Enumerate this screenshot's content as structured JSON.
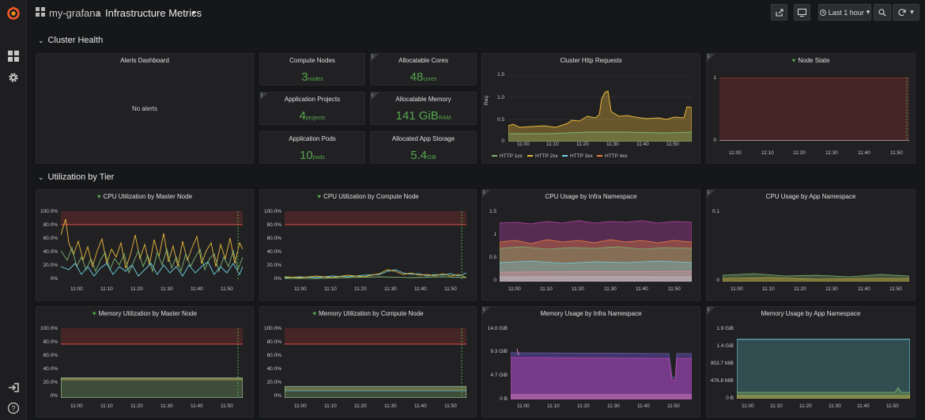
{
  "topbar": {
    "org": "my-grafana",
    "sep": "›",
    "dash": "Infrastructure Metrics",
    "caret": "▾",
    "time": "Last 1 hour",
    "time_caret": "▾",
    "refresh_caret": "▾"
  },
  "icons": {
    "logo": "grafana-logo-icon",
    "dashboards": "dashboards-grid-icon",
    "settings": "gear-icon",
    "signin": "sign-in-icon",
    "help": "help-icon"
  },
  "colors": {
    "accent": "#56a64b",
    "threshold": "#e24d42",
    "grid": "#2f3033"
  },
  "rows": [
    {
      "title": "Cluster Health",
      "chev": "⌄"
    },
    {
      "title": "Utilization by Tier",
      "chev": "⌄"
    }
  ],
  "alerts": {
    "title": "Alerts Dashboard",
    "empty": "No alerts"
  },
  "stats": [
    {
      "title": "Compute Nodes",
      "value": "3",
      "unit": "nodes"
    },
    {
      "title": "Allocatable Cores",
      "value": "48",
      "unit": "cores"
    },
    {
      "title": "Application Projects",
      "value": "4",
      "unit": "projects"
    },
    {
      "title": "Allocatable Memory",
      "value": "141 GiB",
      "unit": "RAM"
    },
    {
      "title": "Application Pods",
      "value": "10",
      "unit": "pods"
    },
    {
      "title": "Allocated App Storage",
      "value": "5.4",
      "unit": "GiB"
    }
  ],
  "info_mark": "i",
  "heart": "♥",
  "http": {
    "title": "Cluster Http Requests",
    "ylabel": "Req",
    "legend": [
      "HTTP 1xx",
      "HTTP 2xx",
      "HTTP 3xx",
      "HTTP 4xx"
    ]
  },
  "node_state": {
    "title": "Node State"
  },
  "xticks": [
    "11:00",
    "11:10",
    "11:20",
    "11:30",
    "11:40",
    "11:50"
  ],
  "pct_ticks": [
    "100.0%",
    "80.0%",
    "60.0%",
    "40.0%",
    "20.0%",
    "0%"
  ],
  "charts": [
    {
      "key": "http",
      "yticks": [
        "1.5",
        "1.0",
        "0.5",
        "0"
      ]
    },
    {
      "key": "node",
      "yticks": [
        "1",
        "0"
      ]
    },
    {
      "key": "cpum",
      "title": "CPU Utilization by Master Node"
    },
    {
      "key": "cpuc",
      "title": "CPU Utilization by Compute Node"
    },
    {
      "key": "cpuinfra",
      "title": "CPU Usage by Infra Namespace",
      "yticks": [
        "1.5",
        "1",
        "0.5",
        "0"
      ]
    },
    {
      "key": "cpuapp",
      "title": "CPU Usage by App Namespace",
      "yticks": [
        "0.1",
        "0"
      ]
    },
    {
      "key": "memm",
      "title": "Memory Utilization by Master Node"
    },
    {
      "key": "memc",
      "title": "Memory Utilization by Compute Node"
    },
    {
      "key": "meminfra",
      "title": "Memory Usage by Infra Namespace",
      "yticks": [
        "14.0 GiB",
        "9.3 GiB",
        "4.7 GiB",
        "0 B"
      ]
    },
    {
      "key": "memapp",
      "title": "Memory Usage by App Namespace",
      "yticks": [
        "1.9 GiB",
        "1.4 GiB",
        "953.7 MiB",
        "476.8 MiB",
        "0 B"
      ]
    }
  ]
}
